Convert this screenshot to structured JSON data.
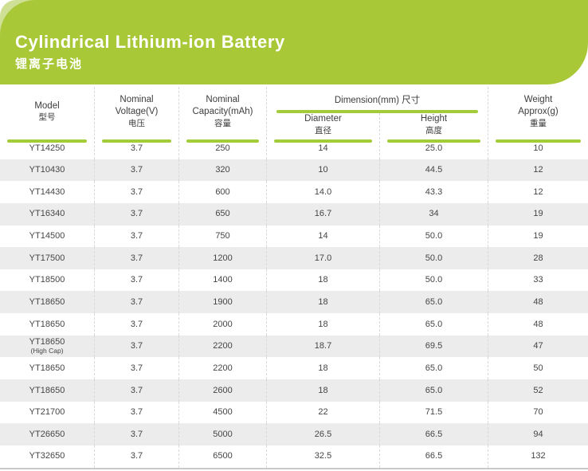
{
  "banner": {
    "title": "Cylindrical Lithium-ion Battery",
    "subtitle": "锂离子电池"
  },
  "colors": {
    "banner_green": "#a8c838",
    "accent_light_green": "#cfdf96",
    "underline_green": "#a2cc3a",
    "alt_row_gray": "#ececec",
    "text_dark": "#3d3d3d"
  },
  "table": {
    "headers": {
      "model": {
        "line1": "Model",
        "zh": "型号"
      },
      "voltage": {
        "line1": "Nominal",
        "line2": "Voltage(V)",
        "zh": "电压"
      },
      "capacity": {
        "line1": "Nominal",
        "line2": "Capacity(mAh)",
        "zh": "容量"
      },
      "dimension_group": "Dimension(mm) 尺寸",
      "diameter": {
        "line1": "Diameter",
        "zh": "直径"
      },
      "height": {
        "line1": "Height",
        "zh": "高度"
      },
      "weight": {
        "line1": "Weight",
        "line2": "Approx(g)",
        "zh": "重量"
      }
    },
    "rows": [
      {
        "model": "YT14250",
        "note": "",
        "voltage": "3.7",
        "capacity": "250",
        "diameter": "14",
        "height": "25.0",
        "weight": "10"
      },
      {
        "model": "YT10430",
        "note": "",
        "voltage": "3.7",
        "capacity": "320",
        "diameter": "10",
        "height": "44.5",
        "weight": "12"
      },
      {
        "model": "YT14430",
        "note": "",
        "voltage": "3.7",
        "capacity": "600",
        "diameter": "14.0",
        "height": "43.3",
        "weight": "12"
      },
      {
        "model": "YT16340",
        "note": "",
        "voltage": "3.7",
        "capacity": "650",
        "diameter": "16.7",
        "height": "34",
        "weight": "19"
      },
      {
        "model": "YT14500",
        "note": "",
        "voltage": "3.7",
        "capacity": "750",
        "diameter": "14",
        "height": "50.0",
        "weight": "19"
      },
      {
        "model": "YT17500",
        "note": "",
        "voltage": "3.7",
        "capacity": "1200",
        "diameter": "17.0",
        "height": "50.0",
        "weight": "28"
      },
      {
        "model": "YT18500",
        "note": "",
        "voltage": "3.7",
        "capacity": "1400",
        "diameter": "18",
        "height": "50.0",
        "weight": "33"
      },
      {
        "model": "YT18650",
        "note": "",
        "voltage": "3.7",
        "capacity": "1900",
        "diameter": "18",
        "height": "65.0",
        "weight": "48"
      },
      {
        "model": "YT18650",
        "note": "",
        "voltage": "3.7",
        "capacity": "2000",
        "diameter": "18",
        "height": "65.0",
        "weight": "48"
      },
      {
        "model": "YT18650",
        "note": "(High Cap)",
        "voltage": "3.7",
        "capacity": "2200",
        "diameter": "18.7",
        "height": "69.5",
        "weight": "47"
      },
      {
        "model": "YT18650",
        "note": "",
        "voltage": "3.7",
        "capacity": "2200",
        "diameter": "18",
        "height": "65.0",
        "weight": "50"
      },
      {
        "model": "YT18650",
        "note": "",
        "voltage": "3.7",
        "capacity": "2600",
        "diameter": "18",
        "height": "65.0",
        "weight": "52"
      },
      {
        "model": "YT21700",
        "note": "",
        "voltage": "3.7",
        "capacity": "4500",
        "diameter": "22",
        "height": "71.5",
        "weight": "70"
      },
      {
        "model": "YT26650",
        "note": "",
        "voltage": "3.7",
        "capacity": "5000",
        "diameter": "26.5",
        "height": "66.5",
        "weight": "94"
      },
      {
        "model": "YT32650",
        "note": "",
        "voltage": "3.7",
        "capacity": "6500",
        "diameter": "32.5",
        "height": "66.5",
        "weight": "132"
      }
    ]
  }
}
